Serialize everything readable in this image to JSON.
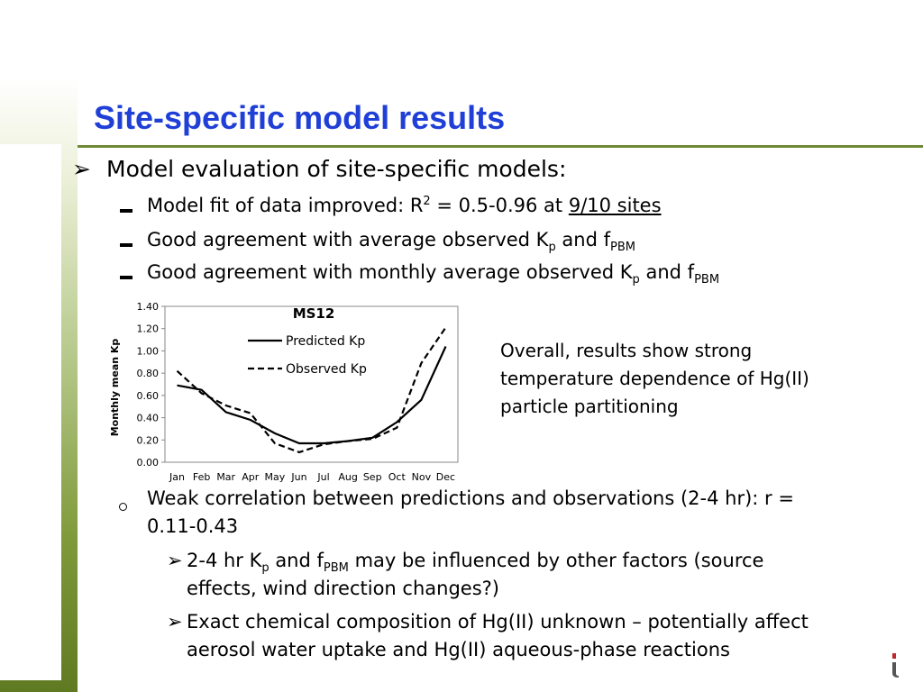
{
  "slide": {
    "title": "Site-specific model results",
    "bullet1": {
      "marker": "➢",
      "text": "Model evaluation of site-specific models:"
    },
    "sub1": {
      "text_a": "Model fit of data improved: R",
      "sup": "2",
      "text_b": " = 0.5-0.96 at ",
      "underlined": "9/10 sites"
    },
    "sub2": {
      "text_a": "Good agreement with average observed K",
      "sub_a": "p",
      "text_b": " and f",
      "sub_b": "PBM"
    },
    "sub3": {
      "text_a": "Good agreement with monthly average observed K",
      "sub_a": "p",
      "text_b": " and f",
      "sub_b": "PBM"
    },
    "note": "Overall, results show strong temperature dependence of Hg(II) particle partitioning",
    "sub4": {
      "marker": "o",
      "line1": "Weak correlation between predictions and observations (2-4 hr): r =",
      "line2": "0.11-0.43"
    },
    "sub5": {
      "marker": "➢",
      "text_a": "2-4 hr K",
      "sub_a": "p",
      "text_b": " and f",
      "sub_b": "PBM",
      "text_c": " may be influenced by other factors (source",
      "line2": "effects, wind direction changes?)"
    },
    "sub6": {
      "marker": "➢",
      "line1": "Exact chemical composition of Hg(II) unknown – potentially affect",
      "line2": "aerosol water uptake and Hg(II) aqueous-phase reactions"
    },
    "logo_glyph": "i",
    "accent_color": "#1f3fd6",
    "rule_color": "#6f8a34",
    "logo_color": "#c0262d"
  },
  "chart_data": {
    "type": "line",
    "title": "MS12",
    "xlabel": "",
    "ylabel": "Monthly mean Kp",
    "categories": [
      "Jan",
      "Feb",
      "Mar",
      "Apr",
      "May",
      "Jun",
      "Jul",
      "Aug",
      "Sep",
      "Oct",
      "Nov",
      "Dec"
    ],
    "yticks": [
      "0.00",
      "0.20",
      "0.40",
      "0.60",
      "0.80",
      "1.00",
      "1.20",
      "1.40"
    ],
    "ylim": [
      0,
      1.4
    ],
    "grid": false,
    "legend_position": "top-center",
    "series": [
      {
        "name": "Predicted Kp",
        "style": "solid",
        "values": [
          0.69,
          0.65,
          0.45,
          0.38,
          0.26,
          0.17,
          0.17,
          0.19,
          0.22,
          0.36,
          0.56,
          1.04
        ]
      },
      {
        "name": "Observed Kp",
        "style": "dashed",
        "values": [
          0.82,
          0.62,
          0.51,
          0.44,
          0.17,
          0.09,
          0.16,
          0.19,
          0.21,
          0.31,
          0.89,
          1.21
        ]
      }
    ]
  }
}
